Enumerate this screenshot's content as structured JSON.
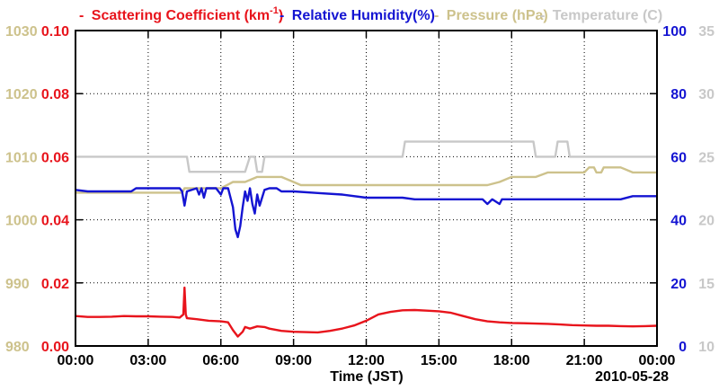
{
  "chart_data": {
    "type": "line",
    "date_label": "2010-05-28",
    "xlabel": "Time (JST)",
    "legend": [
      {
        "dash": "-",
        "text": "Scattering Coefficient (km",
        "sup": "-1",
        "tail": ")",
        "color": "#e8141c"
      },
      {
        "dash": "-",
        "text": "Relative Humidity(%)",
        "color": "#1414d2"
      },
      {
        "dash": "-",
        "text": "Pressure (hPa)",
        "color": "#cdc28c"
      },
      {
        "dash": "-",
        "text": "Temperature (C)",
        "color": "#c8c8c8"
      }
    ],
    "x_ticks": [
      "00:00",
      "03:00",
      "06:00",
      "09:00",
      "12:00",
      "15:00",
      "18:00",
      "21:00",
      "00:00"
    ],
    "x_range_hours": [
      0,
      24
    ],
    "axes": {
      "scattering": {
        "side": "left-inner",
        "range": [
          0.0,
          0.1
        ],
        "ticks": [
          "0.00",
          "0.02",
          "0.04",
          "0.06",
          "0.08",
          "0.10"
        ],
        "color": "#e8141c"
      },
      "pressure": {
        "side": "left-outer",
        "range": [
          980,
          1030
        ],
        "ticks": [
          "980",
          "990",
          "1000",
          "1010",
          "1020",
          "1030"
        ],
        "color": "#cdc28c"
      },
      "humidity": {
        "side": "right-inner",
        "range": [
          0,
          100
        ],
        "ticks": [
          "0",
          "20",
          "40",
          "60",
          "80",
          "100"
        ],
        "color": "#1414d2"
      },
      "temperature": {
        "side": "right-outer",
        "range": [
          10,
          35
        ],
        "ticks": [
          "10",
          "15",
          "20",
          "25",
          "30",
          "35"
        ],
        "color": "#c8c8c8"
      }
    },
    "series": [
      {
        "name": "Scattering Coefficient",
        "axis": "scattering",
        "color": "#e8141c",
        "points": [
          [
            0,
            0.0095
          ],
          [
            0.5,
            0.0092
          ],
          [
            1,
            0.0092
          ],
          [
            1.5,
            0.0093
          ],
          [
            2,
            0.0095
          ],
          [
            2.5,
            0.0094
          ],
          [
            3,
            0.0094
          ],
          [
            3.5,
            0.0093
          ],
          [
            4,
            0.0092
          ],
          [
            4.3,
            0.009
          ],
          [
            4.45,
            0.01
          ],
          [
            4.5,
            0.0185
          ],
          [
            4.55,
            0.01
          ],
          [
            4.6,
            0.0088
          ],
          [
            5,
            0.0085
          ],
          [
            5.5,
            0.008
          ],
          [
            6,
            0.0078
          ],
          [
            6.3,
            0.0075
          ],
          [
            6.5,
            0.005
          ],
          [
            6.7,
            0.003
          ],
          [
            6.9,
            0.0045
          ],
          [
            7.0,
            0.006
          ],
          [
            7.2,
            0.0055
          ],
          [
            7.5,
            0.0062
          ],
          [
            7.8,
            0.006
          ],
          [
            8,
            0.0055
          ],
          [
            8.5,
            0.0048
          ],
          [
            9,
            0.0045
          ],
          [
            9.5,
            0.0044
          ],
          [
            10,
            0.0043
          ],
          [
            10.5,
            0.0048
          ],
          [
            11,
            0.0055
          ],
          [
            11.5,
            0.0065
          ],
          [
            12,
            0.008
          ],
          [
            12.5,
            0.01
          ],
          [
            13,
            0.0108
          ],
          [
            13.5,
            0.0113
          ],
          [
            14,
            0.0114
          ],
          [
            14.5,
            0.0112
          ],
          [
            15,
            0.011
          ],
          [
            15.5,
            0.0105
          ],
          [
            16,
            0.0095
          ],
          [
            16.5,
            0.0085
          ],
          [
            17,
            0.0078
          ],
          [
            17.5,
            0.0075
          ],
          [
            18,
            0.0073
          ],
          [
            18.5,
            0.0072
          ],
          [
            19,
            0.0071
          ],
          [
            19.5,
            0.007
          ],
          [
            20,
            0.0068
          ],
          [
            20.5,
            0.0066
          ],
          [
            21,
            0.0065
          ],
          [
            21.5,
            0.0064
          ],
          [
            22,
            0.0064
          ],
          [
            22.5,
            0.0063
          ],
          [
            23,
            0.0062
          ],
          [
            23.5,
            0.0063
          ],
          [
            24,
            0.0064
          ]
        ]
      },
      {
        "name": "Relative Humidity",
        "axis": "humidity",
        "color": "#1414d2",
        "points": [
          [
            0,
            49.5
          ],
          [
            0.5,
            49
          ],
          [
            1,
            49
          ],
          [
            1.5,
            49
          ],
          [
            2,
            49
          ],
          [
            2.3,
            49
          ],
          [
            2.5,
            50
          ],
          [
            3,
            50
          ],
          [
            3.5,
            50
          ],
          [
            4,
            50
          ],
          [
            4.3,
            50
          ],
          [
            4.4,
            49
          ],
          [
            4.5,
            44.5
          ],
          [
            4.6,
            49
          ],
          [
            5,
            50
          ],
          [
            5.1,
            48
          ],
          [
            5.2,
            50
          ],
          [
            5.3,
            47
          ],
          [
            5.4,
            50
          ],
          [
            5.8,
            50
          ],
          [
            6.0,
            48
          ],
          [
            6.1,
            50
          ],
          [
            6.3,
            50
          ],
          [
            6.4,
            47
          ],
          [
            6.5,
            44
          ],
          [
            6.6,
            37
          ],
          [
            6.7,
            34.5
          ],
          [
            6.8,
            38
          ],
          [
            6.9,
            44
          ],
          [
            7.0,
            49
          ],
          [
            7.1,
            46
          ],
          [
            7.2,
            50
          ],
          [
            7.3,
            45
          ],
          [
            7.4,
            42
          ],
          [
            7.5,
            48
          ],
          [
            7.6,
            44.5
          ],
          [
            7.7,
            47
          ],
          [
            7.8,
            49.5
          ],
          [
            8.0,
            50
          ],
          [
            8.3,
            50
          ],
          [
            8.5,
            49
          ],
          [
            9,
            49
          ],
          [
            10,
            48.5
          ],
          [
            11,
            48
          ],
          [
            12,
            47
          ],
          [
            13,
            47
          ],
          [
            13.5,
            47
          ],
          [
            14,
            46.5
          ],
          [
            15,
            46.5
          ],
          [
            16,
            46.5
          ],
          [
            16.8,
            46.5
          ],
          [
            17,
            45
          ],
          [
            17.2,
            46.5
          ],
          [
            17.5,
            45
          ],
          [
            17.6,
            46.5
          ],
          [
            18,
            46.5
          ],
          [
            19,
            46.5
          ],
          [
            20,
            46.5
          ],
          [
            21,
            46.5
          ],
          [
            22,
            46.5
          ],
          [
            22.5,
            46.5
          ],
          [
            23,
            47.5
          ],
          [
            23.5,
            47.5
          ],
          [
            24,
            47.5
          ]
        ]
      },
      {
        "name": "Pressure",
        "axis": "pressure",
        "color": "#cdc28c",
        "points": [
          [
            0,
            1004.3
          ],
          [
            1,
            1004.3
          ],
          [
            2,
            1004.3
          ],
          [
            3,
            1004.3
          ],
          [
            4,
            1004.3
          ],
          [
            4.4,
            1004.3
          ],
          [
            4.5,
            1005.0
          ],
          [
            5,
            1005.0
          ],
          [
            6,
            1005.0
          ],
          [
            6.5,
            1006.0
          ],
          [
            7,
            1006.0
          ],
          [
            7.5,
            1006.8
          ],
          [
            8,
            1006.8
          ],
          [
            8.5,
            1006.8
          ],
          [
            9,
            1006.0
          ],
          [
            9.3,
            1005.5
          ],
          [
            10,
            1005.5
          ],
          [
            11,
            1005.5
          ],
          [
            12,
            1005.5
          ],
          [
            13,
            1005.5
          ],
          [
            14,
            1005.5
          ],
          [
            15,
            1005.5
          ],
          [
            16,
            1005.5
          ],
          [
            17,
            1005.5
          ],
          [
            17.5,
            1006.0
          ],
          [
            18,
            1006.8
          ],
          [
            19,
            1006.8
          ],
          [
            19.5,
            1007.5
          ],
          [
            20,
            1007.5
          ],
          [
            21,
            1007.5
          ],
          [
            21.2,
            1008.3
          ],
          [
            21.4,
            1008.3
          ],
          [
            21.5,
            1007.5
          ],
          [
            21.7,
            1007.5
          ],
          [
            21.8,
            1008.3
          ],
          [
            22.5,
            1008.3
          ],
          [
            23,
            1007.5
          ],
          [
            24,
            1007.5
          ]
        ]
      },
      {
        "name": "Temperature",
        "axis": "temperature",
        "color": "#c8c8c8",
        "points": [
          [
            0,
            25
          ],
          [
            1,
            25
          ],
          [
            2,
            25
          ],
          [
            3,
            25
          ],
          [
            4,
            25
          ],
          [
            4.6,
            25
          ],
          [
            4.7,
            23.8
          ],
          [
            5,
            23.8
          ],
          [
            5.5,
            23.8
          ],
          [
            6,
            23.8
          ],
          [
            7,
            23.8
          ],
          [
            7.2,
            25
          ],
          [
            7.4,
            25
          ],
          [
            7.5,
            23.8
          ],
          [
            7.7,
            23.8
          ],
          [
            7.8,
            25
          ],
          [
            9,
            25
          ],
          [
            10,
            25
          ],
          [
            11,
            25
          ],
          [
            12,
            25
          ],
          [
            13,
            25
          ],
          [
            13.5,
            25
          ],
          [
            13.6,
            26.2
          ],
          [
            14,
            26.2
          ],
          [
            15,
            26.2
          ],
          [
            16,
            26.2
          ],
          [
            17,
            26.2
          ],
          [
            18,
            26.2
          ],
          [
            18.9,
            26.2
          ],
          [
            19,
            25
          ],
          [
            19.8,
            25
          ],
          [
            19.9,
            26.2
          ],
          [
            20.3,
            26.2
          ],
          [
            20.4,
            25
          ],
          [
            21,
            25
          ],
          [
            22,
            25
          ],
          [
            23,
            25
          ],
          [
            24,
            25
          ]
        ]
      }
    ]
  }
}
